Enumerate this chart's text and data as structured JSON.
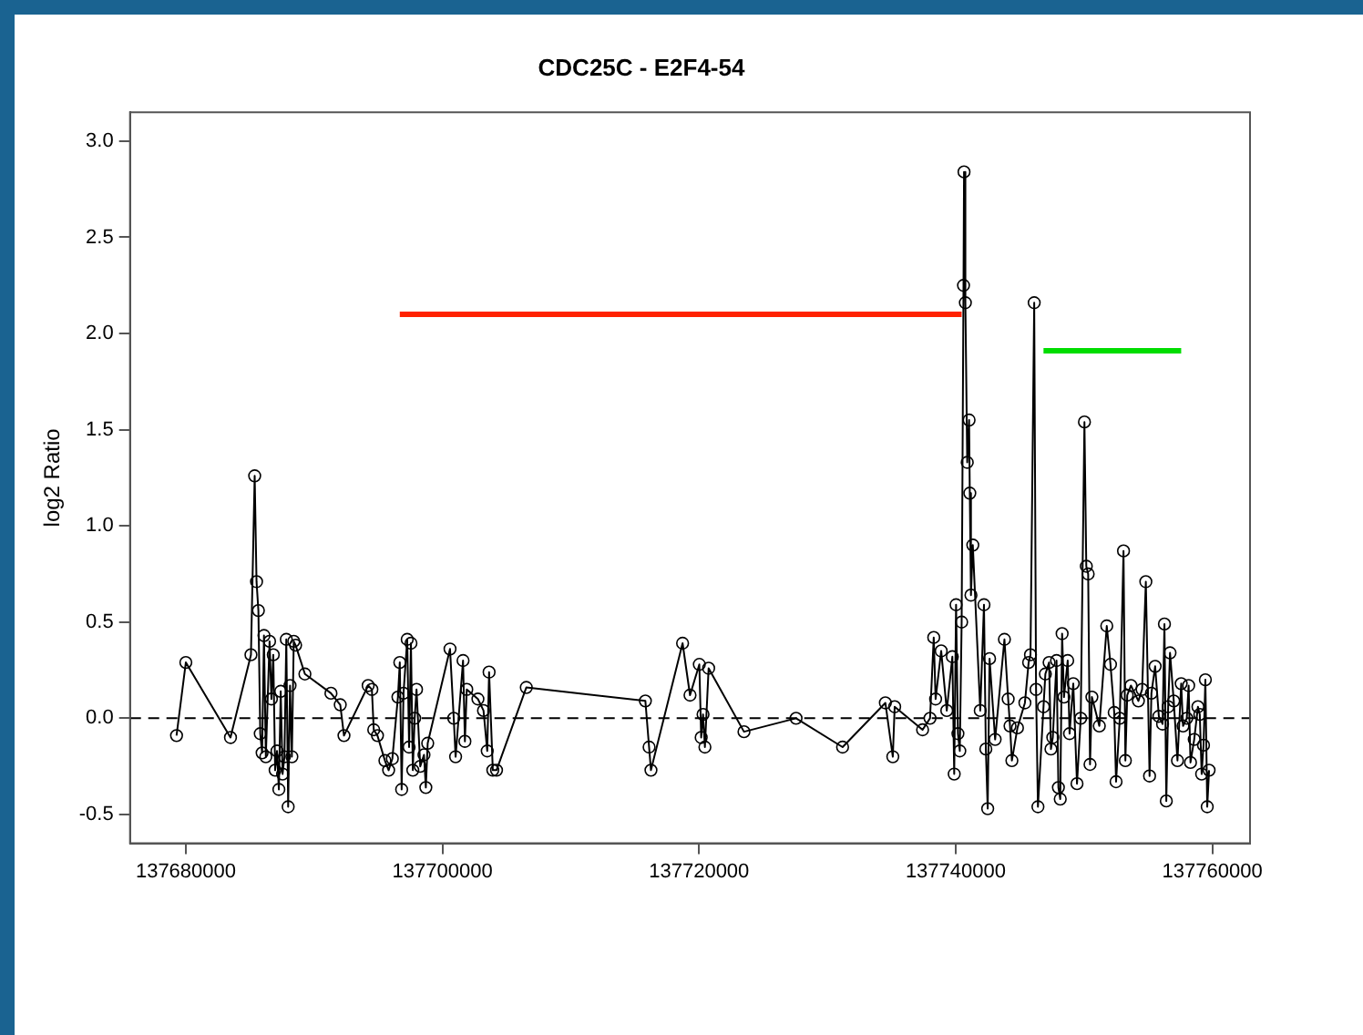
{
  "chart_data": {
    "type": "line",
    "title": "CDC25C - E2F4-54",
    "ylabel": "log2 Ratio",
    "xlim": [
      137675650,
      137762940
    ],
    "ylim": [
      -0.65,
      3.15
    ],
    "xticks": [
      137680000,
      137700000,
      137720000,
      137740000,
      137760000
    ],
    "yticks": [
      -0.5,
      {
        "value": 0,
        "label": "0.0"
      },
      0.5,
      {
        "value": 1,
        "label": "1.0"
      },
      1.5,
      {
        "value": 2,
        "label": "2.0"
      },
      2.5,
      {
        "value": 3,
        "label": "3.0"
      }
    ],
    "grid": false,
    "legend": false,
    "ref_lines": [
      {
        "axis": "y",
        "value": 0,
        "line_style": "dashed",
        "color": "#000000"
      }
    ],
    "series": [
      {
        "color": "#000000",
        "marker": "circle",
        "line_style": "solid",
        "x": [
          137679275,
          137680000,
          137683480,
          137685075,
          137685365,
          137685510,
          137685655,
          137685800,
          137685945,
          137686090,
          137686235,
          137686525,
          137686670,
          137686815,
          137686960,
          137687105,
          137687250,
          137687395,
          137687540,
          137687685,
          137687830,
          137687975,
          137688120,
          137688265,
          137688410,
          137688555,
          137689280,
          137691310,
          137692035,
          137692325,
          137694210,
          137694500,
          137694645,
          137694935,
          137695515,
          137695805,
          137696095,
          137696530,
          137696675,
          137696820,
          137696965,
          137697255,
          137697400,
          137697545,
          137697690,
          137697835,
          137697980,
          137698270,
          137698560,
          137698705,
          137698850,
          137700590,
          137700880,
          137701025,
          137701605,
          137701750,
          137701895,
          137702765,
          137703200,
          137703490,
          137703635,
          137703925,
          137704215,
          137706535,
          137715815,
          137716105,
          137716250,
          137718715,
          137719295,
          137720020,
          137720165,
          137720310,
          137720455,
          137720745,
          137723500,
          137727560,
          137731185,
          137734520,
          137735100,
          137735245,
          137737420,
          137738000,
          137738290,
          137738435,
          137738870,
          137739305,
          137739740,
          137739885,
          137740030,
          137740175,
          137740320,
          137740465,
          137740610,
          137740650,
          137740755,
          137740900,
          137741045,
          137741100,
          137741190,
          137741335,
          137741915,
          137742205,
          137742350,
          137742495,
          137742640,
          137743075,
          137743800,
          137744090,
          137744235,
          137744380,
          137744815,
          137745395,
          137745685,
          137745830,
          137746120,
          137746265,
          137746410,
          137746845,
          137746990,
          137747280,
          137747425,
          137747570,
          137747860,
          137748005,
          137748150,
          137748295,
          137748440,
          137748730,
          137748875,
          137749165,
          137749455,
          137749745,
          137750035,
          137750180,
          137750325,
          137750470,
          137750615,
          137751195,
          137751775,
          137752065,
          137752355,
          137752500,
          137752790,
          137753080,
          137753225,
          137753370,
          137753660,
          137754240,
          137754530,
          137754820,
          137755110,
          137755255,
          137755545,
          137755835,
          137756125,
          137756270,
          137756415,
          137756560,
          137756705,
          137756995,
          137757285,
          137757575,
          137757720,
          137758010,
          137758155,
          137758300,
          137758590,
          137758880,
          137759025,
          137759170,
          137759315,
          137759460,
          137759605,
          137759750
        ],
        "values": [
          -0.09,
          0.29,
          -0.1,
          0.33,
          1.26,
          0.71,
          0.56,
          -0.08,
          -0.18,
          0.43,
          -0.2,
          0.4,
          0.1,
          0.33,
          -0.27,
          -0.17,
          -0.37,
          0.14,
          -0.29,
          -0.2,
          0.41,
          -0.46,
          0.17,
          -0.2,
          0.4,
          0.38,
          0.23,
          0.13,
          0.07,
          -0.09,
          0.17,
          0.15,
          -0.06,
          -0.09,
          -0.22,
          -0.27,
          -0.21,
          0.11,
          0.29,
          -0.37,
          0.13,
          0.41,
          -0.15,
          0.39,
          -0.27,
          0,
          0.15,
          -0.25,
          -0.19,
          -0.36,
          -0.13,
          0.36,
          0,
          -0.2,
          0.3,
          -0.12,
          0.15,
          0.1,
          0.04,
          -0.17,
          0.24,
          -0.27,
          -0.27,
          0.16,
          0.09,
          -0.15,
          -0.27,
          0.39,
          0.12,
          0.28,
          -0.1,
          0.02,
          -0.15,
          0.26,
          -0.07,
          0,
          -0.15,
          0.08,
          -0.2,
          0.06,
          -0.06,
          0,
          0.42,
          0.1,
          0.35,
          0.04,
          0.32,
          -0.29,
          0.59,
          -0.08,
          -0.17,
          0.5,
          2.25,
          2.84,
          2.16,
          1.33,
          1.55,
          1.17,
          0.64,
          0.9,
          0.04,
          0.59,
          -0.16,
          -0.47,
          0.31,
          -0.11,
          0.41,
          0.1,
          -0.04,
          -0.22,
          -0.05,
          0.08,
          0.29,
          0.33,
          2.16,
          0.15,
          -0.46,
          0.06,
          0.23,
          0.29,
          -0.16,
          -0.1,
          0.3,
          -0.36,
          -0.42,
          0.44,
          0.11,
          0.3,
          -0.08,
          0.18,
          -0.34,
          0,
          1.54,
          0.79,
          0.75,
          -0.24,
          0.11,
          -0.04,
          0.48,
          0.28,
          0.03,
          -0.33,
          0,
          0.87,
          -0.22,
          0.12,
          0.17,
          0.09,
          0.15,
          0.71,
          -0.3,
          0.13,
          0.27,
          0.01,
          -0.03,
          0.49,
          -0.43,
          0.06,
          0.34,
          0.09,
          -0.22,
          0.18,
          -0.04,
          0,
          0.17,
          -0.23,
          -0.11,
          0.06,
          0.02,
          -0.29,
          -0.14,
          0.2,
          -0.46,
          -0.27
        ]
      },
      {
        "color": "#ff2200",
        "marker": "none",
        "line_style": "solid",
        "x": [
          137696675,
          137740465
        ],
        "values": [
          2.1,
          2.1
        ]
      },
      {
        "color": "#00dd00",
        "marker": "none",
        "line_style": "solid",
        "x": [
          137746845,
          137757575
        ],
        "values": [
          1.91,
          1.91
        ]
      }
    ]
  }
}
